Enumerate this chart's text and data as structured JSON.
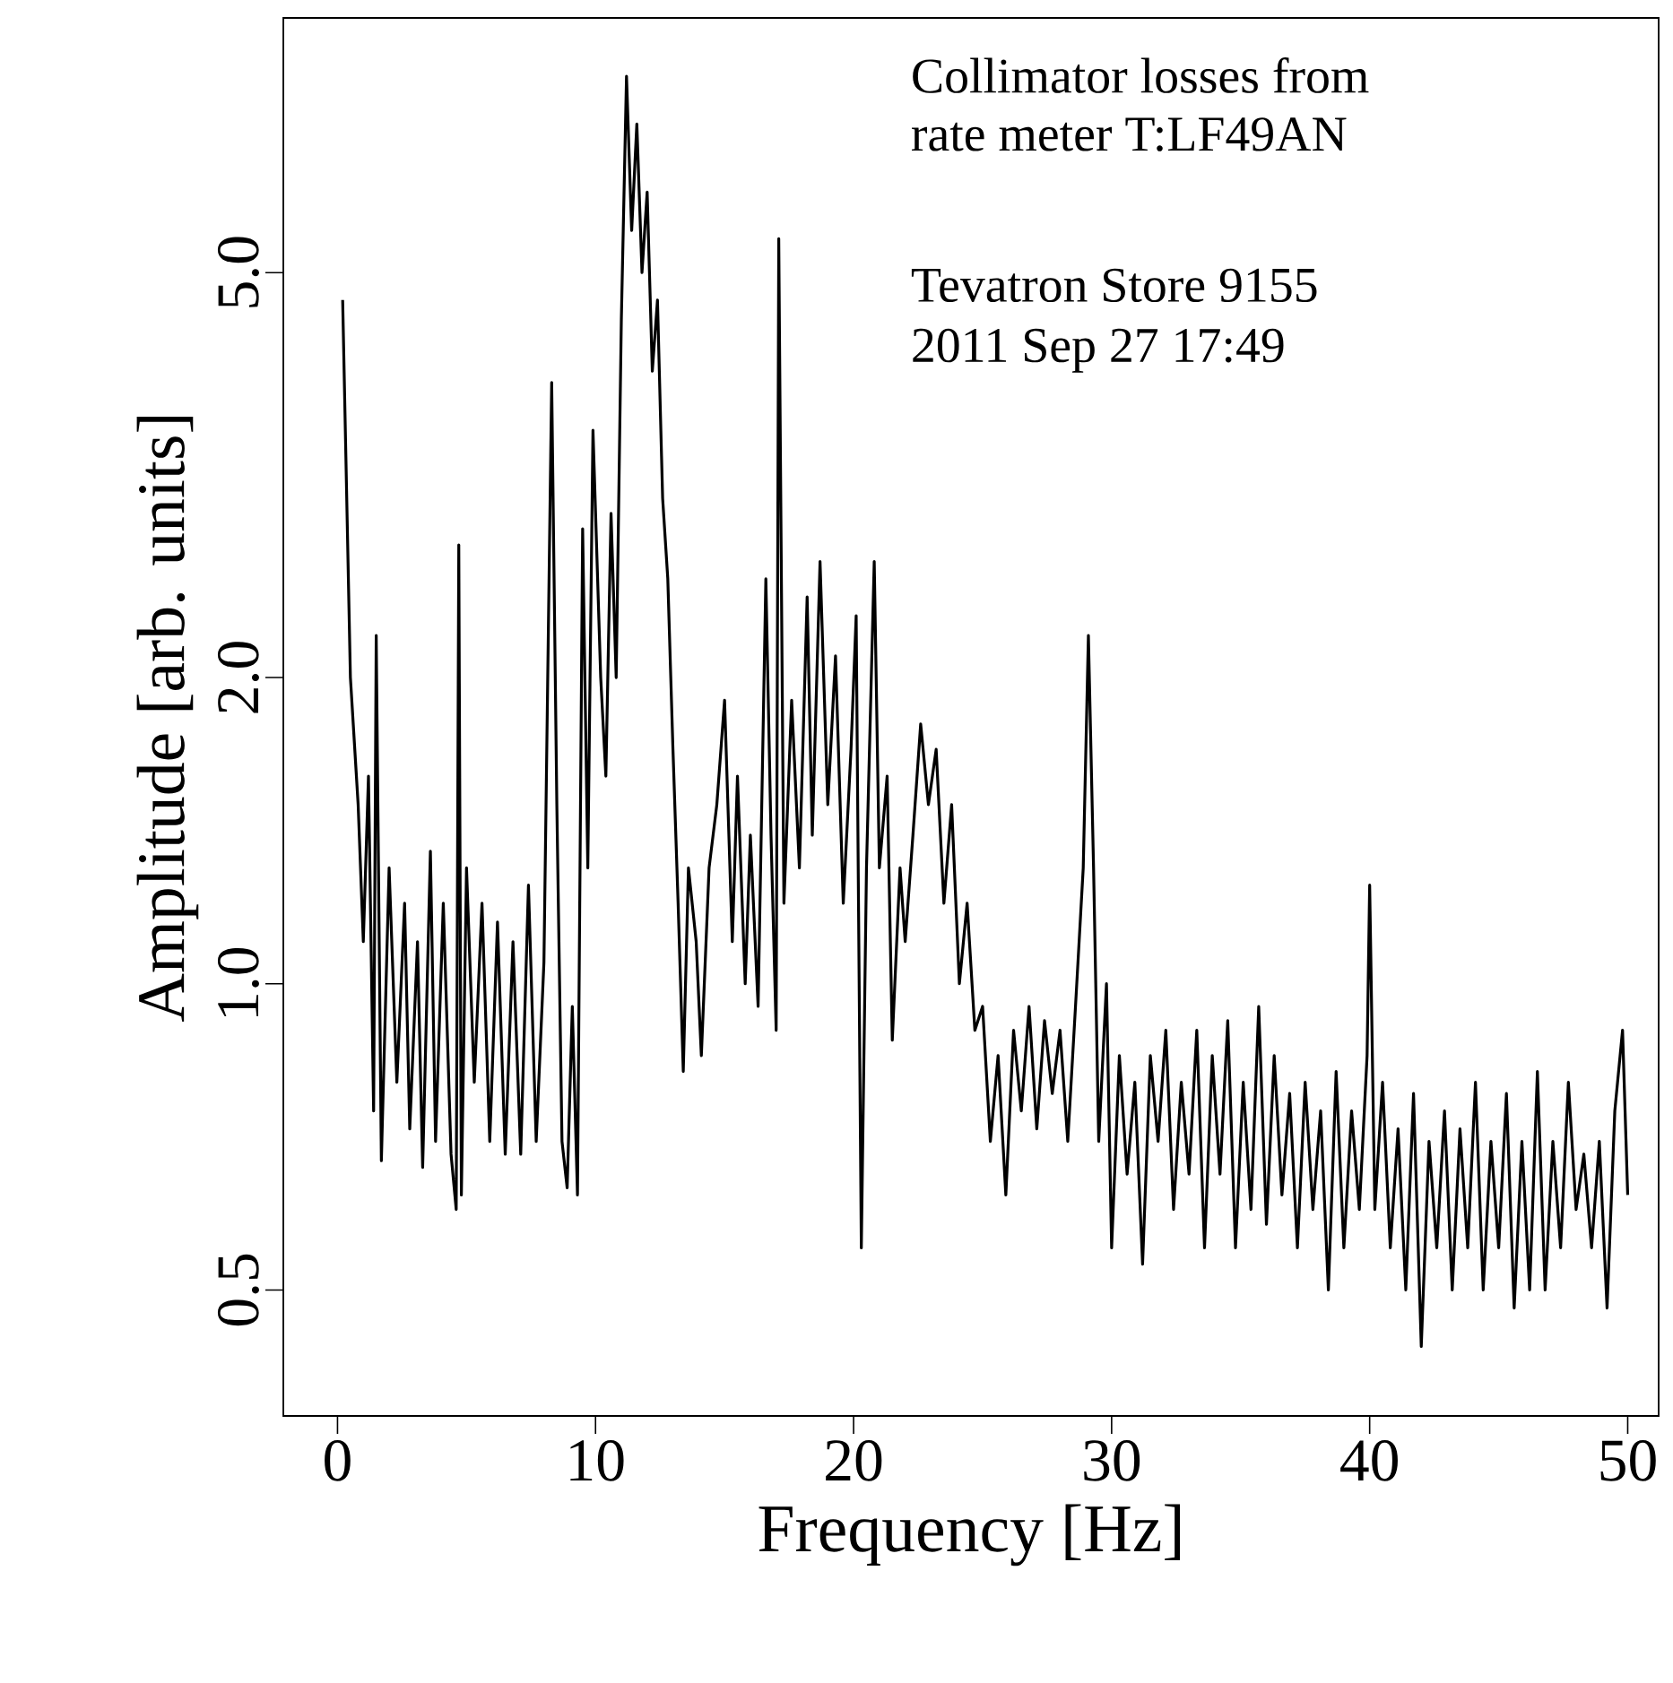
{
  "chart_data": {
    "type": "line",
    "xlabel": "Frequency [Hz]",
    "ylabel": "Amplitude [arb. units]",
    "annotations": [
      "Collimator losses from",
      "rate meter T:LF49AN",
      "Tevatron Store 9155",
      "2011 Sep 27 17:49"
    ],
    "log": "y",
    "grid": false,
    "marker": "none",
    "line_style": "solid",
    "xlim": [
      -2.1,
      51.2
    ],
    "ylim": [
      0.376,
      8.9
    ],
    "xticks": [
      0,
      10,
      20,
      30,
      40,
      50
    ],
    "yticks": [
      {
        "value": 0.5,
        "label": "0.5"
      },
      {
        "value": 1,
        "label": "1.0"
      },
      {
        "value": 2,
        "label": "2.0"
      },
      {
        "value": 5,
        "label": "5.0"
      }
    ],
    "series": [
      {
        "color": "#000000",
        "x": [
          0.2,
          0.5,
          0.8,
          1.0,
          1.2,
          1.4,
          1.5,
          1.7,
          2.0,
          2.3,
          2.6,
          2.8,
          3.1,
          3.3,
          3.6,
          3.8,
          4.1,
          4.4,
          4.6,
          4.7,
          4.8,
          5.0,
          5.3,
          5.6,
          5.9,
          6.2,
          6.5,
          6.8,
          7.1,
          7.4,
          7.7,
          8.0,
          8.3,
          8.5,
          8.7,
          8.9,
          9.1,
          9.3,
          9.5,
          9.7,
          9.9,
          10.2,
          10.4,
          10.6,
          10.8,
          11.0,
          11.2,
          11.4,
          11.6,
          11.8,
          12.0,
          12.2,
          12.4,
          12.6,
          12.8,
          13.0,
          13.2,
          13.4,
          13.6,
          13.9,
          14.1,
          14.4,
          14.7,
          15.0,
          15.3,
          15.5,
          15.8,
          16.0,
          16.3,
          16.6,
          16.8,
          17.0,
          17.1,
          17.3,
          17.6,
          17.9,
          18.2,
          18.4,
          18.7,
          19.0,
          19.3,
          19.6,
          19.9,
          20.1,
          20.3,
          20.5,
          20.8,
          21.0,
          21.3,
          21.5,
          21.8,
          22.0,
          22.3,
          22.6,
          22.9,
          23.2,
          23.5,
          23.8,
          24.1,
          24.4,
          24.7,
          25.0,
          25.3,
          25.6,
          25.9,
          26.2,
          26.5,
          26.8,
          27.1,
          27.4,
          27.7,
          28.0,
          28.3,
          28.6,
          28.9,
          29.1,
          29.3,
          29.5,
          29.8,
          30.0,
          30.3,
          30.6,
          30.9,
          31.2,
          31.5,
          31.8,
          32.1,
          32.4,
          32.7,
          33.0,
          33.3,
          33.6,
          33.9,
          34.2,
          34.5,
          34.8,
          35.1,
          35.4,
          35.7,
          36.0,
          36.3,
          36.6,
          36.9,
          37.2,
          37.5,
          37.8,
          38.1,
          38.4,
          38.7,
          39.0,
          39.3,
          39.6,
          39.9,
          40.0,
          40.2,
          40.5,
          40.8,
          41.1,
          41.4,
          41.7,
          42.0,
          42.3,
          42.6,
          42.9,
          43.2,
          43.5,
          43.8,
          44.1,
          44.4,
          44.7,
          45.0,
          45.3,
          45.6,
          45.9,
          46.2,
          46.5,
          46.8,
          47.1,
          47.4,
          47.7,
          48.0,
          48.3,
          48.6,
          48.9,
          49.2,
          49.5,
          49.8,
          50.0
        ],
        "values": [
          4.7,
          2.0,
          1.5,
          1.1,
          1.6,
          0.75,
          2.2,
          0.67,
          1.3,
          0.8,
          1.2,
          0.72,
          1.1,
          0.66,
          1.35,
          0.7,
          1.2,
          0.68,
          0.6,
          2.7,
          0.62,
          1.3,
          0.8,
          1.2,
          0.7,
          1.15,
          0.68,
          1.1,
          0.68,
          1.25,
          0.7,
          1.05,
          3.9,
          1.5,
          0.7,
          0.63,
          0.95,
          0.62,
          2.8,
          1.3,
          3.5,
          2.0,
          1.6,
          2.9,
          2.0,
          4.5,
          7.8,
          5.5,
          7.0,
          5.0,
          6.0,
          4.0,
          4.7,
          3.0,
          2.5,
          1.7,
          1.2,
          0.82,
          1.3,
          1.1,
          0.85,
          1.3,
          1.5,
          1.9,
          1.1,
          1.6,
          1.0,
          1.4,
          0.95,
          2.5,
          1.4,
          0.9,
          5.4,
          1.2,
          1.9,
          1.3,
          2.4,
          1.4,
          2.6,
          1.5,
          2.1,
          1.2,
          1.7,
          2.3,
          0.55,
          1.3,
          2.6,
          1.3,
          1.6,
          0.88,
          1.3,
          1.1,
          1.4,
          1.8,
          1.5,
          1.7,
          1.2,
          1.5,
          1.0,
          1.2,
          0.9,
          0.95,
          0.7,
          0.85,
          0.62,
          0.9,
          0.75,
          0.95,
          0.72,
          0.92,
          0.78,
          0.9,
          0.7,
          0.95,
          1.3,
          2.2,
          1.3,
          0.7,
          1.0,
          0.55,
          0.85,
          0.65,
          0.8,
          0.53,
          0.85,
          0.7,
          0.9,
          0.6,
          0.8,
          0.65,
          0.9,
          0.55,
          0.85,
          0.65,
          0.92,
          0.55,
          0.8,
          0.6,
          0.95,
          0.58,
          0.85,
          0.62,
          0.78,
          0.55,
          0.8,
          0.6,
          0.75,
          0.5,
          0.82,
          0.55,
          0.75,
          0.6,
          0.85,
          1.25,
          0.6,
          0.8,
          0.55,
          0.72,
          0.5,
          0.78,
          0.44,
          0.7,
          0.55,
          0.75,
          0.5,
          0.72,
          0.55,
          0.8,
          0.5,
          0.7,
          0.55,
          0.78,
          0.48,
          0.7,
          0.5,
          0.82,
          0.5,
          0.7,
          0.55,
          0.8,
          0.6,
          0.68,
          0.55,
          0.7,
          0.48,
          0.75,
          0.9,
          0.62
        ]
      }
    ]
  }
}
